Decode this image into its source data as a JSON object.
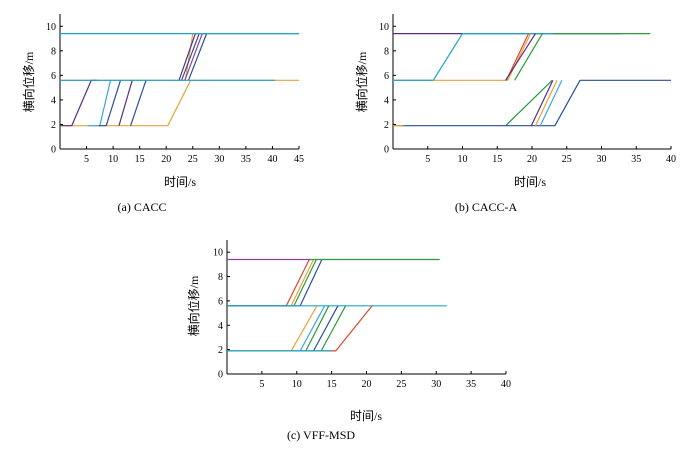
{
  "chart_data": [
    {
      "type": "line",
      "caption": "(a)  CACC",
      "xlabel": "时间/s",
      "ylabel": "横向位移/m",
      "xlim": [
        0,
        45
      ],
      "ylim": [
        0,
        11
      ],
      "xticks": [
        5,
        10,
        15,
        20,
        25,
        30,
        35,
        40,
        45
      ],
      "yticks": [
        0,
        2,
        4,
        6,
        8,
        10
      ],
      "grid": false,
      "series": [
        {
          "color": "#e8a33a",
          "x": [
            0,
            20.3,
            24.6,
            45
          ],
          "y": [
            1.9,
            1.9,
            5.6,
            5.6
          ]
        },
        {
          "color": "#e8a33a",
          "x": [
            0,
            23.6,
            25,
            45
          ],
          "y": [
            5.6,
            5.6,
            9.4,
            9.4
          ]
        },
        {
          "color": "#5a2d82",
          "x": [
            0,
            2.2,
            5.9,
            7.0
          ],
          "y": [
            1.9,
            1.9,
            5.6,
            5.6
          ]
        },
        {
          "color": "#3ba7e0",
          "x": [
            5.2,
            7.5,
            9.5
          ],
          "y": [
            1.9,
            1.9,
            5.6
          ]
        },
        {
          "color": "#2a4f9a",
          "x": [
            7.3,
            8.7,
            11.4
          ],
          "y": [
            1.9,
            1.9,
            5.6
          ]
        },
        {
          "color": "#5a2d82",
          "x": [
            11.1,
            13.6
          ],
          "y": [
            1.9,
            5.6
          ]
        },
        {
          "color": "#2a4f9a",
          "x": [
            13.3,
            16.2
          ],
          "y": [
            1.9,
            5.6
          ]
        },
        {
          "color": "#5a2d82",
          "x": [
            22.4,
            25.5
          ],
          "y": [
            5.6,
            9.4
          ]
        },
        {
          "color": "#2a4f9a",
          "x": [
            22.9,
            26.2
          ],
          "y": [
            5.6,
            9.4
          ]
        },
        {
          "color": "#8e3fa0",
          "x": [
            23.5,
            26.8
          ],
          "y": [
            5.6,
            9.4
          ]
        },
        {
          "color": "#2a4f9a",
          "x": [
            24.2,
            27.6
          ],
          "y": [
            5.6,
            9.4
          ]
        },
        {
          "color": "#1aa5c9",
          "x": [
            0,
            40.5
          ],
          "y": [
            5.6,
            5.6
          ]
        },
        {
          "color": "#1aa5c9",
          "x": [
            0,
            45
          ],
          "y": [
            9.4,
            9.4
          ]
        }
      ]
    },
    {
      "type": "line",
      "caption": "(b)  CACC-A",
      "xlabel": "时间/s",
      "ylabel": "横向位移/m",
      "xlim": [
        0,
        40
      ],
      "ylim": [
        0,
        11
      ],
      "xticks": [
        5,
        10,
        15,
        20,
        25,
        30,
        35,
        40
      ],
      "yticks": [
        0,
        2,
        4,
        6,
        8,
        10
      ],
      "grid": false,
      "series": [
        {
          "color": "#5a2d82",
          "x": [
            0,
            10,
            33
          ],
          "y": [
            9.4,
            9.4,
            9.4
          ]
        },
        {
          "color": "#1aa5c9",
          "x": [
            0,
            5.8,
            10,
            23
          ],
          "y": [
            5.6,
            5.6,
            9.4,
            9.4
          ]
        },
        {
          "color": "#2a9a3a",
          "x": [
            23,
            37
          ],
          "y": [
            9.4,
            9.4
          ]
        },
        {
          "color": "#e8a33a",
          "x": [
            0,
            16.5,
            19.8
          ],
          "y": [
            5.6,
            5.6,
            9.4
          ]
        },
        {
          "color": "#d94b2b",
          "x": [
            16.3,
            19.5
          ],
          "y": [
            5.6,
            9.4
          ]
        },
        {
          "color": "#2a9a3a",
          "x": [
            17.5,
            21.5
          ],
          "y": [
            5.6,
            9.4
          ]
        },
        {
          "color": "#5a2d82",
          "x": [
            16.2,
            20.5
          ],
          "y": [
            5.6,
            9.4
          ]
        },
        {
          "color": "#2a9a3a",
          "x": [
            16.2,
            22.9
          ],
          "y": [
            1.9,
            5.6
          ]
        },
        {
          "color": "#2a4f9a",
          "x": [
            0,
            23.3,
            26.9,
            40
          ],
          "y": [
            1.9,
            1.9,
            5.6,
            5.6
          ]
        },
        {
          "color": "#e8a33a",
          "x": [
            0,
            1.5
          ],
          "y": [
            1.9,
            1.9
          ]
        },
        {
          "color": "#5a2d82",
          "x": [
            19.9,
            23.0
          ],
          "y": [
            1.9,
            5.6
          ]
        },
        {
          "color": "#e8a33a",
          "x": [
            20.5,
            23.6
          ],
          "y": [
            1.9,
            5.6
          ]
        },
        {
          "color": "#3ba7e0",
          "x": [
            21.2,
            24.3
          ],
          "y": [
            1.9,
            5.6
          ]
        },
        {
          "color": "#1aa5c9",
          "x": [
            0,
            5.8
          ],
          "y": [
            5.6,
            5.6
          ]
        }
      ]
    },
    {
      "type": "line",
      "caption": "(c)  VFF-MSD",
      "xlabel": "时间/s",
      "ylabel": "横向位移/m",
      "xlim": [
        0,
        40
      ],
      "ylim": [
        0,
        11
      ],
      "xticks": [
        5,
        10,
        15,
        20,
        25,
        30,
        35,
        40
      ],
      "yticks": [
        0,
        2,
        4,
        6,
        8,
        10
      ],
      "grid": false,
      "series": [
        {
          "color": "#d94b2b",
          "x": [
            0,
            8.5,
            11.8
          ],
          "y": [
            5.6,
            5.6,
            9.4
          ]
        },
        {
          "color": "#2a4f9a",
          "x": [
            0,
            10.5,
            13.6
          ],
          "y": [
            5.6,
            5.6,
            9.4
          ]
        },
        {
          "color": "#2a9a3a",
          "x": [
            9.6,
            12.8
          ],
          "y": [
            5.6,
            9.4
          ]
        },
        {
          "color": "#e8a33a",
          "x": [
            9.2,
            12.4
          ],
          "y": [
            5.6,
            9.4
          ]
        },
        {
          "color": "#8e3fa0",
          "x": [
            0,
            11.9
          ],
          "y": [
            9.4,
            9.4
          ]
        },
        {
          "color": "#2a9a3a",
          "x": [
            11.9,
            30.5
          ],
          "y": [
            9.4,
            9.4
          ]
        },
        {
          "color": "#1aa5c9",
          "x": [
            0,
            31.5
          ],
          "y": [
            5.6,
            5.6
          ]
        },
        {
          "color": "#e8a33a",
          "x": [
            9.2,
            12.9
          ],
          "y": [
            1.9,
            5.6
          ]
        },
        {
          "color": "#3ba7e0",
          "x": [
            10.5,
            14.0
          ],
          "y": [
            1.9,
            5.6
          ]
        },
        {
          "color": "#2a9a3a",
          "x": [
            11.3,
            14.6
          ],
          "y": [
            1.9,
            5.6
          ]
        },
        {
          "color": "#2a4f9a",
          "x": [
            12.4,
            15.9
          ],
          "y": [
            1.9,
            5.6
          ]
        },
        {
          "color": "#d94b2b",
          "x": [
            0,
            15.6,
            20.8
          ],
          "y": [
            1.9,
            1.9,
            5.6
          ]
        },
        {
          "color": "#2a9a3a",
          "x": [
            13.5,
            17.0
          ],
          "y": [
            1.9,
            5.6
          ]
        },
        {
          "color": "#1aa5c9",
          "x": [
            0,
            15
          ],
          "y": [
            1.9,
            1.9
          ]
        }
      ]
    }
  ]
}
